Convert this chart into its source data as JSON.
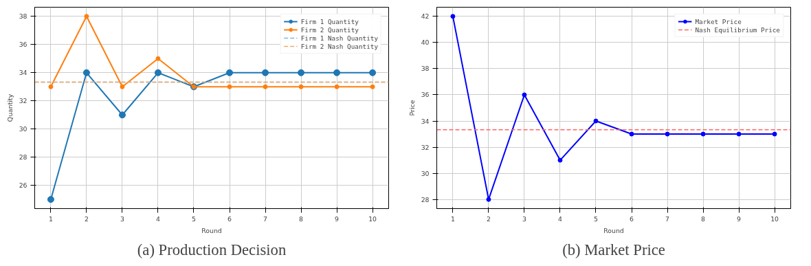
{
  "chart_data": [
    {
      "type": "line",
      "title": "(a) Production Decision",
      "xlabel": "Round",
      "ylabel": "Quantity",
      "x": [
        1,
        2,
        3,
        4,
        5,
        6,
        7,
        8,
        9,
        10
      ],
      "series": [
        {
          "name": "Firm 1 Quantity",
          "color": "#1f77b4",
          "values": [
            25,
            34,
            31,
            34,
            33,
            34,
            34,
            34,
            34,
            34
          ]
        },
        {
          "name": "Firm 2 Quantity",
          "color": "#ff7f0e",
          "values": [
            33,
            38,
            33,
            35,
            33,
            33,
            33,
            33,
            33,
            33
          ]
        }
      ],
      "ref_lines": [
        {
          "axis": "y",
          "value": 33.33,
          "label": "Firm 1 Nash Quantity",
          "color": "#7fb9e0",
          "line_style": "dashed"
        },
        {
          "axis": "y",
          "value": 33.33,
          "label": "Firm 2 Nash Quantity",
          "color": "#f5a965",
          "line_style": "dashed"
        }
      ],
      "xlim": [
        0.55,
        10.45
      ],
      "ylim": [
        24.35,
        38.65
      ],
      "xticks": [
        1,
        2,
        3,
        4,
        5,
        6,
        7,
        8,
        9,
        10
      ],
      "yticks": [
        26,
        28,
        30,
        32,
        34,
        36,
        38
      ],
      "grid": true,
      "legend": "top right",
      "marker": "circle",
      "line_style": "solid"
    },
    {
      "type": "line",
      "title": "(b) Market Price",
      "xlabel": "Round",
      "ylabel": "Price",
      "x": [
        1,
        2,
        3,
        4,
        5,
        6,
        7,
        8,
        9,
        10
      ],
      "series": [
        {
          "name": "Market Price",
          "color": "#0000ff",
          "values": [
            42,
            28,
            36,
            31,
            34,
            33,
            33,
            33,
            33,
            33
          ]
        }
      ],
      "ref_lines": [
        {
          "axis": "y",
          "value": 33.33,
          "label": "Nash Equilibrium Price",
          "color": "#ff6666",
          "line_style": "dashed"
        }
      ],
      "xlim": [
        0.55,
        10.45
      ],
      "ylim": [
        27.3,
        42.7
      ],
      "xticks": [
        1,
        2,
        3,
        4,
        5,
        6,
        7,
        8,
        9,
        10
      ],
      "yticks": [
        28,
        30,
        32,
        34,
        36,
        38,
        40,
        42
      ],
      "grid": true,
      "legend": "top right",
      "marker": "circle",
      "line_style": "solid"
    }
  ]
}
